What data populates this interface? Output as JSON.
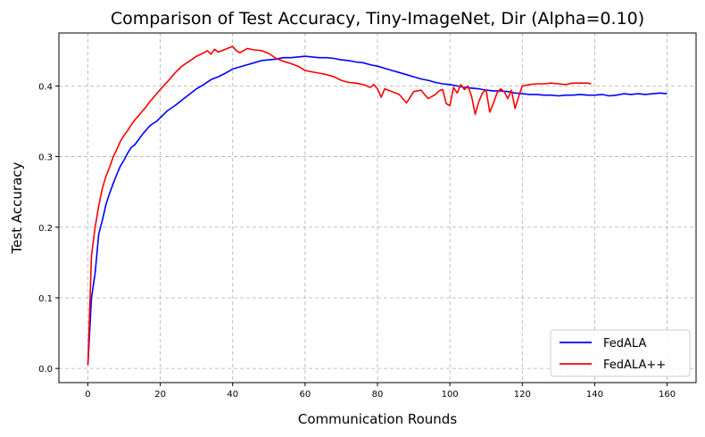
{
  "chart_data": {
    "type": "line",
    "title": "Comparison of Test Accuracy, Tiny-ImageNet, Dir (Alpha=0.10)",
    "xlabel": "Communication Rounds",
    "ylabel": "Test Accuracy",
    "xlim": [
      -8,
      168
    ],
    "ylim": [
      -0.02,
      0.475
    ],
    "xticks": [
      0,
      20,
      40,
      60,
      80,
      100,
      120,
      140,
      160
    ],
    "yticks": [
      0.0,
      0.1,
      0.2,
      0.3,
      0.4
    ],
    "ytick_labels": [
      "0.0",
      "0.1",
      "0.2",
      "0.3",
      "0.4"
    ],
    "grid": true,
    "legend_position": "lower-right",
    "series": [
      {
        "name": "FedALA",
        "color": "#0000ff",
        "x": [
          0,
          1,
          2,
          3,
          4,
          5,
          6,
          7,
          8,
          9,
          10,
          11,
          12,
          13,
          14,
          15,
          16,
          17,
          18,
          19,
          20,
          22,
          24,
          26,
          28,
          30,
          32,
          34,
          36,
          38,
          40,
          42,
          44,
          46,
          48,
          50,
          52,
          54,
          56,
          58,
          60,
          62,
          64,
          66,
          68,
          70,
          72,
          74,
          76,
          78,
          80,
          82,
          84,
          86,
          88,
          90,
          92,
          94,
          96,
          98,
          100,
          102,
          104,
          106,
          108,
          110,
          112,
          114,
          116,
          118,
          120,
          122,
          124,
          126,
          128,
          130,
          132,
          134,
          136,
          138,
          140,
          142,
          144,
          146,
          148,
          150,
          152,
          154,
          156,
          158,
          160
        ],
        "y": [
          0.005,
          0.1,
          0.135,
          0.19,
          0.21,
          0.232,
          0.248,
          0.262,
          0.275,
          0.287,
          0.295,
          0.305,
          0.313,
          0.317,
          0.324,
          0.331,
          0.337,
          0.343,
          0.347,
          0.35,
          0.355,
          0.365,
          0.372,
          0.38,
          0.388,
          0.396,
          0.402,
          0.409,
          0.413,
          0.418,
          0.424,
          0.427,
          0.43,
          0.433,
          0.436,
          0.437,
          0.438,
          0.44,
          0.44,
          0.441,
          0.442,
          0.441,
          0.44,
          0.44,
          0.439,
          0.437,
          0.436,
          0.434,
          0.433,
          0.43,
          0.428,
          0.425,
          0.422,
          0.419,
          0.416,
          0.413,
          0.41,
          0.408,
          0.405,
          0.403,
          0.402,
          0.4,
          0.398,
          0.397,
          0.396,
          0.394,
          0.393,
          0.393,
          0.392,
          0.39,
          0.389,
          0.388,
          0.388,
          0.387,
          0.387,
          0.386,
          0.387,
          0.387,
          0.388,
          0.387,
          0.387,
          0.388,
          0.386,
          0.387,
          0.389,
          0.388,
          0.389,
          0.388,
          0.389,
          0.39,
          0.389
        ]
      },
      {
        "name": "FedALA++",
        "color": "#ff0000",
        "x": [
          0,
          1,
          2,
          3,
          4,
          5,
          6,
          7,
          8,
          9,
          10,
          11,
          12,
          13,
          14,
          15,
          16,
          17,
          18,
          19,
          20,
          22,
          24,
          26,
          28,
          30,
          32,
          33,
          34,
          35,
          36,
          38,
          40,
          41,
          42,
          43,
          44,
          46,
          48,
          50,
          52,
          54,
          56,
          58,
          60,
          62,
          64,
          66,
          68,
          70,
          72,
          74,
          76,
          78,
          79,
          80,
          81,
          82,
          84,
          86,
          88,
          90,
          92,
          94,
          96,
          97,
          98,
          99,
          100,
          101,
          102,
          103,
          104,
          105,
          106,
          107,
          108,
          109,
          110,
          111,
          112,
          113,
          114,
          115,
          116,
          117,
          118,
          119,
          120,
          122,
          124,
          126,
          128,
          130,
          132,
          134,
          136,
          138,
          139
        ],
        "y": [
          0.005,
          0.16,
          0.2,
          0.23,
          0.255,
          0.272,
          0.285,
          0.3,
          0.31,
          0.322,
          0.33,
          0.337,
          0.345,
          0.352,
          0.358,
          0.364,
          0.37,
          0.377,
          0.383,
          0.389,
          0.395,
          0.406,
          0.418,
          0.428,
          0.435,
          0.442,
          0.447,
          0.45,
          0.445,
          0.452,
          0.448,
          0.452,
          0.456,
          0.45,
          0.447,
          0.45,
          0.453,
          0.451,
          0.45,
          0.446,
          0.439,
          0.435,
          0.432,
          0.428,
          0.422,
          0.42,
          0.418,
          0.416,
          0.413,
          0.408,
          0.405,
          0.404,
          0.402,
          0.398,
          0.402,
          0.396,
          0.384,
          0.396,
          0.392,
          0.388,
          0.376,
          0.392,
          0.394,
          0.382,
          0.388,
          0.393,
          0.395,
          0.375,
          0.372,
          0.398,
          0.39,
          0.402,
          0.395,
          0.4,
          0.385,
          0.36,
          0.378,
          0.39,
          0.395,
          0.363,
          0.375,
          0.39,
          0.396,
          0.392,
          0.382,
          0.394,
          0.368,
          0.385,
          0.4,
          0.402,
          0.403,
          0.403,
          0.404,
          0.403,
          0.402,
          0.404,
          0.404,
          0.404,
          0.403
        ]
      }
    ]
  }
}
